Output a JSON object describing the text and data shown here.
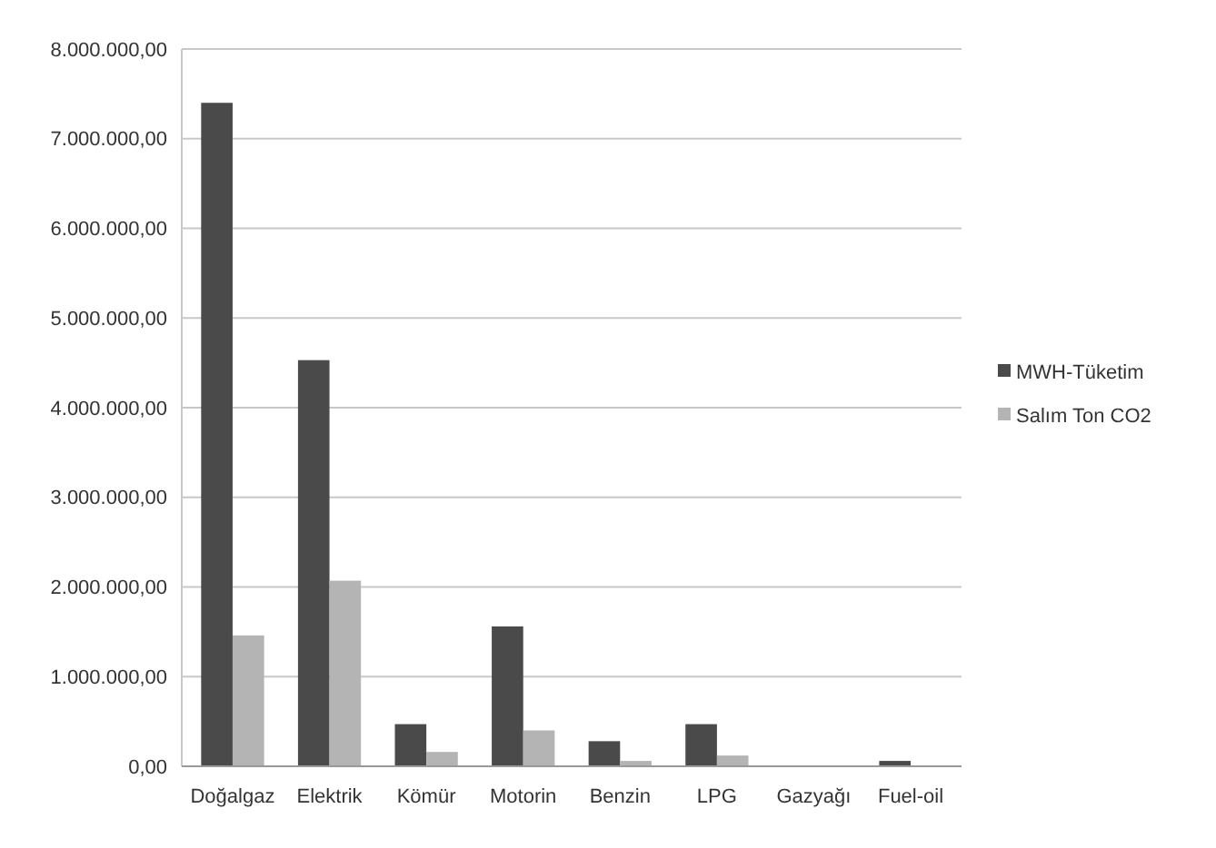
{
  "chart_data": {
    "type": "bar",
    "categories": [
      "Doğalgaz",
      "Elektrik",
      "Kömür",
      "Motorin",
      "Benzin",
      "LPG",
      "Gazyağı",
      "Fuel-oil"
    ],
    "series": [
      {
        "name": "MWH-Tüketim",
        "color": "#4a4a4a",
        "values": [
          7400000,
          4530000,
          470000,
          1560000,
          280000,
          470000,
          0,
          60000
        ]
      },
      {
        "name": "Salım Ton CO2",
        "color": "#b4b4b4",
        "values": [
          1460000,
          2070000,
          160000,
          400000,
          60000,
          120000,
          0,
          10000
        ]
      }
    ],
    "ylim": [
      0,
      8000000
    ],
    "yticks": [
      {
        "value": 0,
        "label": "0,00"
      },
      {
        "value": 1000000,
        "label": "1.000.000,00"
      },
      {
        "value": 2000000,
        "label": "2.000.000,00"
      },
      {
        "value": 3000000,
        "label": "3.000.000,00"
      },
      {
        "value": 4000000,
        "label": "4.000.000,00"
      },
      {
        "value": 5000000,
        "label": "5.000.000,00"
      },
      {
        "value": 6000000,
        "label": "6.000.000,00"
      },
      {
        "value": 7000000,
        "label": "7.000.000,00"
      },
      {
        "value": 8000000,
        "label": "8.000.000,00"
      }
    ],
    "grid": "y",
    "legend": "right"
  }
}
